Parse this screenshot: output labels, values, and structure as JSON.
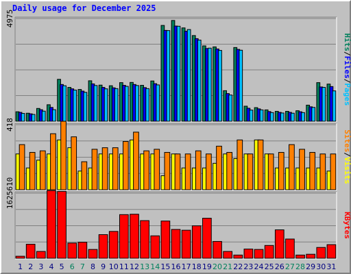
{
  "title": "Daily usage for December 2025",
  "colors": {
    "background": "#c0c0c0",
    "panel": "#c0c0c0",
    "grid": "#808080",
    "hits": "#00805c",
    "files": "#0000ff",
    "pages": "#00c0ff",
    "visits": "#ffff00",
    "sites": "#ff8000",
    "kbytes": "#ff0000",
    "weekday_label": "#000080",
    "weekend_label": "#00805c"
  },
  "chart_data": {
    "type": "bar",
    "categories": [
      "1",
      "2",
      "3",
      "4",
      "5",
      "6",
      "7",
      "8",
      "9",
      "10",
      "11",
      "12",
      "13",
      "14",
      "15",
      "16",
      "17",
      "18",
      "19",
      "20",
      "21",
      "22",
      "23",
      "24",
      "25",
      "26",
      "27",
      "28",
      "29",
      "30",
      "31"
    ],
    "weekend_days": [
      "6",
      "7",
      "13",
      "14",
      "20",
      "21",
      "27",
      "28"
    ],
    "panels": [
      {
        "name": "hits-files-pages",
        "ytick": "4975",
        "ymax": 4975,
        "right_labels": [
          {
            "text": "Hits",
            "color": "#00805c"
          },
          {
            "text": "/",
            "color": "#000000"
          },
          {
            "text": "Files",
            "color": "#0000ff"
          },
          {
            "text": "/",
            "color": "#000000"
          },
          {
            "text": "Pages",
            "color": "#00c0ff"
          }
        ],
        "series": [
          {
            "name": "Hits",
            "color": "#00805c",
            "values": [
              460,
              390,
              620,
              800,
              2030,
              1640,
              1540,
              1960,
              1750,
              1720,
              1870,
              1880,
              1740,
              1950,
              4640,
              4880,
              4520,
              4150,
              3650,
              3600,
              1480,
              3570,
              730,
              660,
              550,
              480,
              480,
              510,
              780,
              1870,
              1800
            ]
          },
          {
            "name": "Files",
            "color": "#0000ff",
            "values": [
              430,
              360,
              560,
              670,
              1780,
              1570,
              1460,
              1810,
              1640,
              1620,
              1740,
              1780,
              1630,
              1820,
              4400,
              4610,
              4360,
              4000,
              3520,
              3500,
              1340,
              3480,
              630,
              600,
              470,
              430,
              430,
              460,
              700,
              1660,
              1680
            ]
          },
          {
            "name": "Pages",
            "color": "#00c0ff",
            "values": [
              380,
              330,
              490,
              560,
              1720,
              1510,
              1400,
              1730,
              1570,
              1580,
              1690,
              1730,
              1580,
              1760,
              4390,
              4600,
              4440,
              3930,
              3540,
              3430,
              1270,
              3440,
              540,
              550,
              420,
              400,
              390,
              420,
              670,
              1640,
              1470
            ]
          }
        ]
      },
      {
        "name": "visits-sites",
        "ytick": "418",
        "ymax": 418,
        "right_labels": [
          {
            "text": "Sites",
            "color": "#ff8000"
          },
          {
            "text": "/",
            "color": "#000000"
          },
          {
            "text": "Visits",
            "color": "#ffff00"
          }
        ],
        "series": [
          {
            "name": "Visits",
            "color": "#ffff00",
            "values": [
              230,
              140,
              190,
              230,
              320,
              270,
              120,
              140,
              230,
              230,
              230,
              320,
              230,
              230,
              90,
              230,
              140,
              140,
              140,
              170,
              230,
              200,
              230,
              320,
              230,
              140,
              140,
              140,
              140,
              140,
              120
            ]
          },
          {
            "name": "Sites",
            "color": "#ff8000",
            "values": [
              290,
              240,
              250,
              360,
              440,
              340,
              180,
              260,
              270,
              270,
              310,
              370,
              250,
              260,
              240,
              230,
              230,
              250,
              230,
              280,
              240,
              320,
              230,
              320,
              230,
              240,
              290,
              260,
              240,
              230,
              230
            ]
          }
        ]
      },
      {
        "name": "kbytes",
        "ytick": "1625610",
        "ymax": 1625610,
        "right_labels": [
          {
            "text": "KBytes",
            "color": "#ff0000"
          }
        ],
        "series": [
          {
            "name": "KBytes",
            "color": "#ff0000",
            "values": [
              50000,
              350000,
              170000,
              1690000,
              1670000,
              380000,
              400000,
              220000,
              590000,
              670000,
              1090000,
              1100000,
              940000,
              560000,
              930000,
              720000,
              700000,
              810000,
              1000000,
              420000,
              170000,
              80000,
              230000,
              220000,
              320000,
              710000,
              480000,
              80000,
              100000,
              270000,
              340000
            ]
          }
        ]
      }
    ]
  }
}
